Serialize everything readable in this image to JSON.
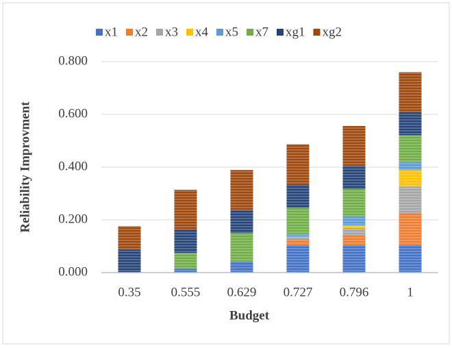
{
  "chart_data": {
    "type": "stacked_bar",
    "xlabel": "Budget",
    "ylabel": "Reliability Improvment",
    "categories": [
      "0.35",
      "0.555",
      "0.629",
      "0.727",
      "0.796",
      "1"
    ],
    "series": [
      {
        "name": "x1",
        "color": "#4472c4",
        "values": [
          0,
          0.015,
          0.042,
          0.104,
          0.104,
          0.104
        ]
      },
      {
        "name": "x2",
        "color": "#ed7d31",
        "values": [
          0,
          0,
          0,
          0.023,
          0.039,
          0.122
        ]
      },
      {
        "name": "x3",
        "color": "#a5a5a5",
        "values": [
          0,
          0,
          0,
          0.01,
          0.026,
          0.101
        ]
      },
      {
        "name": "x4",
        "color": "#ffc000",
        "values": [
          0,
          0,
          0,
          0,
          0.01,
          0.062
        ]
      },
      {
        "name": "x5",
        "color": "#5b9bd5",
        "values": [
          0,
          0,
          0,
          0.01,
          0.034,
          0.031
        ]
      },
      {
        "name": "x7",
        "color": "#70ad47",
        "values": [
          0,
          0.06,
          0.108,
          0.099,
          0.104,
          0.101
        ]
      },
      {
        "name": "xg1",
        "color": "#264478",
        "values": [
          0.088,
          0.088,
          0.088,
          0.088,
          0.088,
          0.088
        ]
      },
      {
        "name": "xg2",
        "color": "#9e480e",
        "values": [
          0.088,
          0.151,
          0.151,
          0.153,
          0.151,
          0.151
        ]
      }
    ],
    "ylim": [
      0,
      0.8
    ],
    "yticks": [
      {
        "value": 0,
        "label": "0.000"
      },
      {
        "value": 0.2,
        "label": "0.200"
      },
      {
        "value": 0.4,
        "label": "0.400"
      },
      {
        "value": 0.6,
        "label": "0.600"
      },
      {
        "value": 0.8,
        "label": "0.800"
      }
    ],
    "grid": true,
    "legend": "top"
  }
}
